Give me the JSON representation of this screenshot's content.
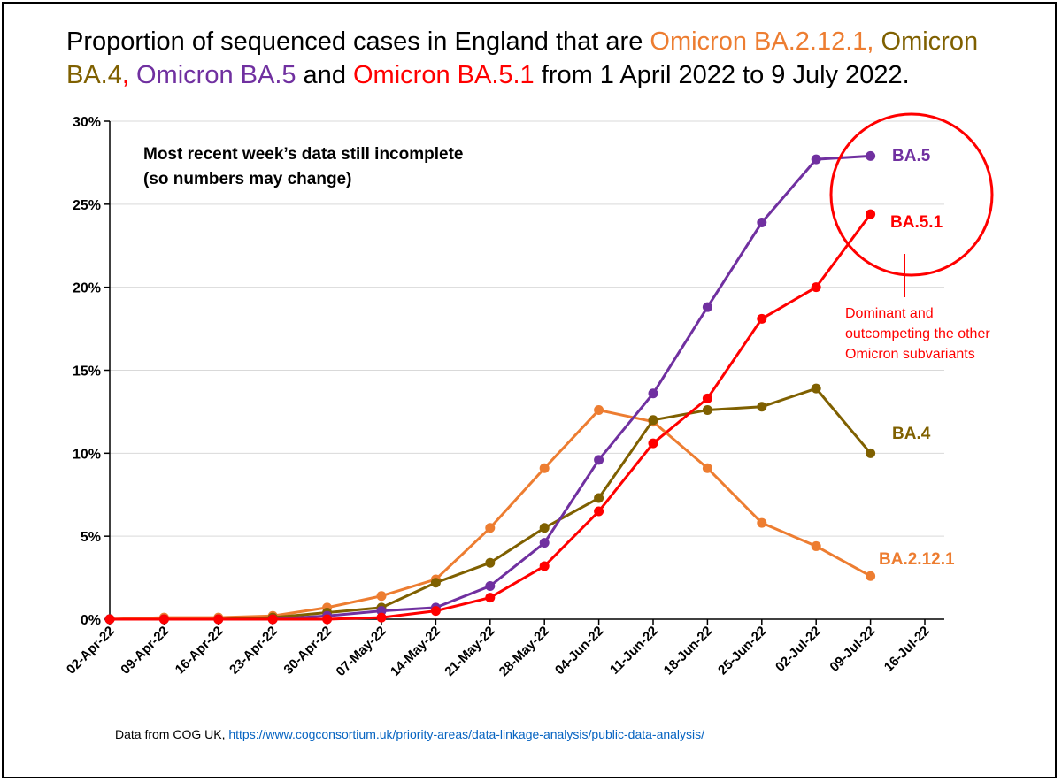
{
  "title": {
    "prefix": "Proportion of sequenced cases in England that are ",
    "v1": "Omicron BA.2.12.1",
    "sep1": ", ",
    "v2a": "Omicron",
    "v2b": "BA.4",
    "sep2": ", ",
    "v3": "Omicron BA.5",
    "sep3": " and ",
    "v4": "Omicron BA.5.1",
    "suffix": " from 1 April 2022 to 9 July 2022."
  },
  "note": {
    "line1": "Most recent week’s data still incomplete",
    "line2": "(so numbers may change)"
  },
  "annotation": {
    "line1": "Dominant and",
    "line2": "outcompeting the other",
    "line3": "Omicron subvariants"
  },
  "source": {
    "prefix": "Data from COG UK, ",
    "link": "https://www.cogconsortium.uk/priority-areas/data-linkage-analysis/public-data-analysis/"
  },
  "colors": {
    "BA.2.12.1": "#ED7D31",
    "BA.4": "#7F6000",
    "BA.5": "#7030A0",
    "BA.5.1": "#FF0000",
    "grid": "#D9D9D9"
  },
  "chart_data": {
    "type": "line",
    "x": [
      "02-Apr-22",
      "09-Apr-22",
      "16-Apr-22",
      "23-Apr-22",
      "30-Apr-22",
      "07-May-22",
      "14-May-22",
      "21-May-22",
      "28-May-22",
      "04-Jun-22",
      "11-Jun-22",
      "18-Jun-22",
      "25-Jun-22",
      "02-Jul-22",
      "09-Jul-22",
      "16-Jul-22"
    ],
    "yticks": [
      "0%",
      "5%",
      "10%",
      "15%",
      "20%",
      "25%",
      "30%"
    ],
    "ylim": [
      0,
      30
    ],
    "grid": true,
    "series": [
      {
        "name": "BA.2.12.1",
        "values": [
          0,
          0.1,
          0.1,
          0.2,
          0.7,
          1.4,
          2.4,
          5.5,
          9.1,
          12.6,
          11.9,
          9.1,
          5.8,
          4.4,
          2.6,
          null
        ]
      },
      {
        "name": "BA.4",
        "values": [
          0,
          0,
          0,
          0.1,
          0.4,
          0.7,
          2.2,
          3.4,
          5.5,
          7.3,
          12.0,
          12.6,
          12.8,
          13.9,
          10.0,
          null
        ]
      },
      {
        "name": "BA.5",
        "values": [
          0,
          0,
          0,
          0,
          0.2,
          0.5,
          0.7,
          2.0,
          4.6,
          9.6,
          13.6,
          18.8,
          23.9,
          27.7,
          27.9,
          null
        ]
      },
      {
        "name": "BA.5.1",
        "values": [
          0,
          0,
          0,
          0,
          0,
          0.1,
          0.5,
          1.3,
          3.2,
          6.5,
          10.6,
          13.3,
          18.1,
          20.0,
          24.4,
          null
        ]
      }
    ],
    "series_labels": [
      {
        "name": "BA.5",
        "text": "BA.5"
      },
      {
        "name": "BA.5.1",
        "text": "BA.5.1"
      },
      {
        "name": "BA.4",
        "text": "BA.4"
      },
      {
        "name": "BA.2.12.1",
        "text": "BA.2.12.1"
      }
    ]
  }
}
